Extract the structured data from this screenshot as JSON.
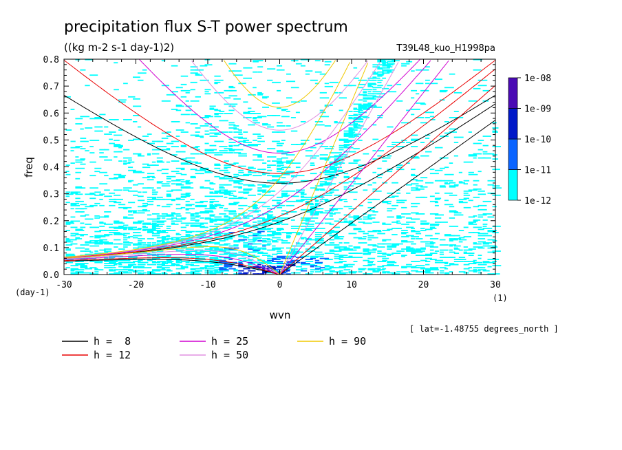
{
  "chart_data": {
    "type": "heatmap",
    "title": "precipitation flux S-T power spectrum",
    "subtitle": "((kg m-2 s-1 day-1)2)",
    "experiment_label": "T39L48_kuo_H1998pa",
    "xlabel": "wvn",
    "ylabel": "freq",
    "x_unit_label": "(1)",
    "y_unit_label": "(day-1)",
    "xlim": [
      -30,
      30
    ],
    "ylim": [
      0,
      0.8
    ],
    "x_ticks": [
      -30,
      -20,
      -10,
      0,
      10,
      20,
      30
    ],
    "x_tick_labels": [
      "-30",
      "-20",
      "-10",
      "0",
      "10",
      "20",
      "30"
    ],
    "y_ticks": [
      0,
      0.1,
      0.2,
      0.3,
      0.4,
      0.5,
      0.6,
      0.7,
      0.8
    ],
    "y_tick_labels": [
      "0.0",
      "0.1",
      "0.2",
      "0.3",
      "0.4",
      "0.5",
      "0.6",
      "0.7",
      "0.8"
    ],
    "annotation": "[ lat=-1.48755 degrees_north ]",
    "colorbar": {
      "labels": [
        "1e-12",
        "1e-11",
        "1e-10",
        "1e-09",
        "1e-08"
      ],
      "colors": [
        "#00ffff",
        "#0a64ff",
        "#0018c8",
        "#4a0ab4"
      ]
    },
    "dispersion_curves": [
      {
        "label": "h =  8",
        "h": 8,
        "color": "#000000"
      },
      {
        "label": "h = 12",
        "h": 12,
        "color": "#e80000"
      },
      {
        "label": "h = 25",
        "h": 25,
        "color": "#d000d0"
      },
      {
        "label": "h = 50",
        "h": 50,
        "color": "#e090e0"
      },
      {
        "label": "h = 90",
        "h": 90,
        "color": "#f0c800"
      }
    ],
    "spectrum_peak": {
      "wvn": -2,
      "freq": 0.02,
      "level": "1e-10"
    }
  }
}
